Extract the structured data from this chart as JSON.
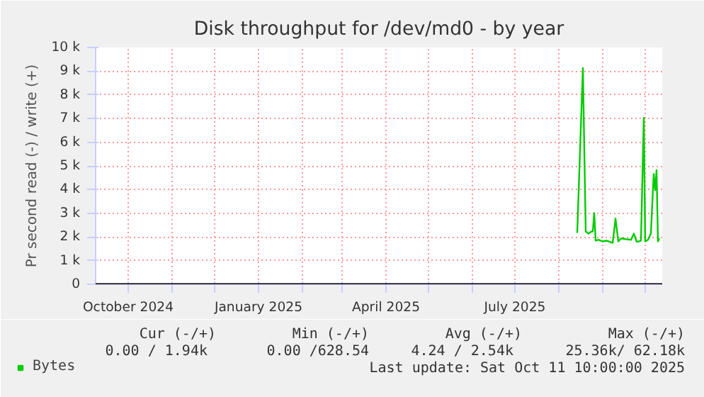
{
  "chart_data": {
    "type": "line",
    "title": "Disk throughput for /dev/md0 - by year",
    "ylabel": "Pr second read (-) / write (+)",
    "x": [
      "2025-08-14",
      "2025-08-18",
      "2025-08-20",
      "2025-08-22",
      "2025-08-24",
      "2025-08-25",
      "2025-08-26",
      "2025-08-27",
      "2025-08-29",
      "2025-09-01",
      "2025-09-04",
      "2025-09-08",
      "2025-09-09",
      "2025-09-10",
      "2025-09-12",
      "2025-09-14",
      "2025-09-18",
      "2025-09-21",
      "2025-09-23",
      "2025-09-25",
      "2025-09-28",
      "2025-09-30",
      "2025-10-01",
      "2025-10-03",
      "2025-10-05",
      "2025-10-07",
      "2025-10-08",
      "2025-10-09",
      "2025-10-10",
      "2025-10-11"
    ],
    "series": [
      {
        "name": "Bytes",
        "color": "#00cc00",
        "values": [
          2170,
          9130,
          2230,
          2140,
          2230,
          2230,
          3010,
          1840,
          1880,
          1810,
          1840,
          1750,
          2230,
          2780,
          1810,
          1940,
          1900,
          1880,
          2140,
          1790,
          1840,
          7030,
          1810,
          1880,
          2140,
          4660,
          3980,
          4820,
          1810,
          1940
        ]
      }
    ],
    "xlim": [
      "2024-09-08",
      "2025-10-13"
    ],
    "xticks": [
      {
        "value": "2024-10-01",
        "label": "October 2024"
      },
      {
        "value": "2024-11-01",
        "label": null
      },
      {
        "value": "2024-12-01",
        "label": null
      },
      {
        "value": "2025-01-01",
        "label": "January 2025"
      },
      {
        "value": "2025-02-01",
        "label": null
      },
      {
        "value": "2025-03-01",
        "label": null
      },
      {
        "value": "2025-04-01",
        "label": "April 2025"
      },
      {
        "value": "2025-05-01",
        "label": null
      },
      {
        "value": "2025-06-01",
        "label": null
      },
      {
        "value": "2025-07-01",
        "label": "July 2025"
      },
      {
        "value": "2025-08-01",
        "label": null
      },
      {
        "value": "2025-09-01",
        "label": null
      },
      {
        "value": "2025-10-01",
        "label": null
      }
    ],
    "ylim": [
      0,
      10000
    ],
    "yticks": [
      0,
      {
        "value": 1000,
        "label": "1 k"
      },
      {
        "value": 2000,
        "label": "2 k"
      },
      {
        "value": 3000,
        "label": "3 k"
      },
      {
        "value": 4000,
        "label": "4 k"
      },
      {
        "value": 5000,
        "label": "5 k"
      },
      {
        "value": 6000,
        "label": "6 k"
      },
      {
        "value": 7000,
        "label": "7 k"
      },
      {
        "value": 8000,
        "label": "8 k"
      },
      {
        "value": 9000,
        "label": "9 k"
      },
      {
        "value": 10000,
        "label": "10 k"
      }
    ],
    "ref_lines": [
      {
        "axis": "y",
        "value": 0,
        "color": "#000000"
      }
    ],
    "grid": true,
    "legend": "bottom left",
    "marker": "none",
    "line_style": "solid",
    "annotations": [
      "Cur (-/+)",
      "Min (-/+)",
      "Avg (-/+)",
      "Max (-/+)",
      "0.00 /  1.94k",
      "0.00 /628.54",
      "4.24 /  2.54k",
      "25.36k/ 62.18k",
      "Last update: Sat Oct 11 10:00:00 2025"
    ]
  }
}
